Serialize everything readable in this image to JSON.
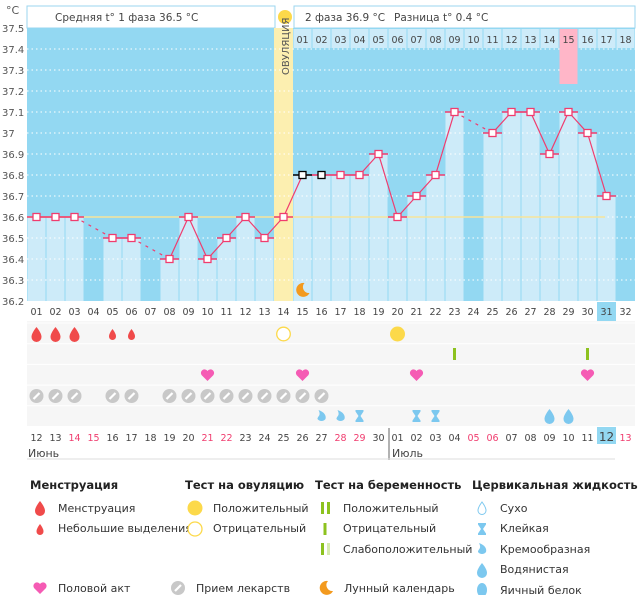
{
  "header": {
    "unit": "°C",
    "phase1_avg": "Средняя t° 1 фаза 36.5 °C",
    "phase2_avg": "2 фаза 36.9 °C",
    "difference": "Разница t° 0.4 °C",
    "ovulation_label": "ОВУЛЯЦИЯ"
  },
  "colors": {
    "background": "#93d8f2",
    "bar": "#cdebf9",
    "line": "#f03c6e",
    "coverline": "#f7e49a",
    "ovulation": "#fcefb0",
    "highlight_pink": "#ffb6c8",
    "today": "#93d8f2",
    "weekend": "#f03c6e"
  },
  "y_axis": {
    "ticks": [
      "37.5",
      "37.4",
      "37.3",
      "37.2",
      "37.1",
      "37",
      "36.9",
      "36.8",
      "36.7",
      "36.6",
      "36.5",
      "36.4",
      "36.3",
      "36.2"
    ],
    "min": 36.2,
    "max": 37.5
  },
  "chart_data": {
    "type": "line",
    "ylim": [
      36.2,
      37.5
    ],
    "coverline": 36.6,
    "ovulation_day": 14,
    "cycle_days": [
      "01",
      "02",
      "03",
      "04",
      "05",
      "06",
      "07",
      "08",
      "09",
      "10",
      "11",
      "12",
      "13",
      "14",
      "15",
      "16",
      "17",
      "18",
      "19",
      "20",
      "21",
      "22",
      "23",
      "24",
      "25",
      "26",
      "27",
      "28",
      "29",
      "30",
      "31",
      "32"
    ],
    "temps": [
      36.6,
      36.6,
      36.6,
      null,
      36.5,
      36.5,
      null,
      36.4,
      36.6,
      36.4,
      36.5,
      36.6,
      36.5,
      36.6,
      36.8,
      36.8,
      36.8,
      36.8,
      36.9,
      36.6,
      36.7,
      36.8,
      37.1,
      null,
      37.0,
      37.1,
      37.1,
      36.9,
      37.1,
      37.0,
      36.7,
      null
    ],
    "black_markers": [
      15,
      16
    ],
    "phase2_days": [
      "01",
      "02",
      "03",
      "04",
      "05",
      "06",
      "07",
      "08",
      "09",
      "10",
      "11",
      "12",
      "13",
      "14",
      "15",
      "16",
      "17",
      "18"
    ],
    "phase2_highlight": "15"
  },
  "dates": [
    "12",
    "13",
    "14",
    "15",
    "16",
    "17",
    "18",
    "19",
    "20",
    "21",
    "22",
    "23",
    "24",
    "25",
    "26",
    "27",
    "28",
    "29",
    "30",
    "01",
    "02",
    "03",
    "04",
    "05",
    "06",
    "07",
    "08",
    "09",
    "10",
    "11",
    "12",
    "13"
  ],
  "weekend_indexes": [
    3,
    4,
    10,
    11,
    17,
    18,
    24,
    25,
    32
  ],
  "today_index": 31,
  "months": [
    {
      "label": "Июнь",
      "start": 1
    },
    {
      "label": "Июль",
      "start": 20
    }
  ],
  "events": {
    "menstruation": {
      "3": "heavy",
      "1": "heavy",
      "2": "heavy",
      "5": "light",
      "6": "light"
    },
    "ovulation_test": {
      "14": "negative",
      "20": "positive"
    },
    "pregnancy_test": {
      "23": "negative",
      "30": "negative"
    },
    "intercourse": [
      10,
      15,
      21,
      30
    ],
    "medication": [
      1,
      2,
      3,
      5,
      6,
      8,
      9,
      10,
      11,
      12,
      13,
      14,
      15,
      16
    ],
    "moon": [
      15
    ],
    "cervical": {
      "16": "creamy",
      "17": "creamy",
      "18": "sticky",
      "21": "sticky",
      "22": "sticky",
      "28": "watery",
      "29": "watery"
    }
  },
  "legend": {
    "menstruation": {
      "title": "Менструация",
      "items": [
        "Менструация",
        "Небольшие выделения"
      ]
    },
    "ovulation_test": {
      "title": "Тест на овуляцию",
      "items": [
        "Положительный",
        "Отрицательный"
      ]
    },
    "pregnancy_test": {
      "title": "Тест на беременность",
      "items": [
        "Положительный",
        "Отрицательный",
        "Слабоположительный"
      ]
    },
    "cervical": {
      "title": "Цервикальная жидкость",
      "items": [
        "Сухо",
        "Клейкая",
        "Кремообразная",
        "Водянистая",
        "Яичный белок"
      ]
    },
    "other": [
      "Половой акт",
      "Прием лекарств",
      "Лунный календарь"
    ]
  }
}
